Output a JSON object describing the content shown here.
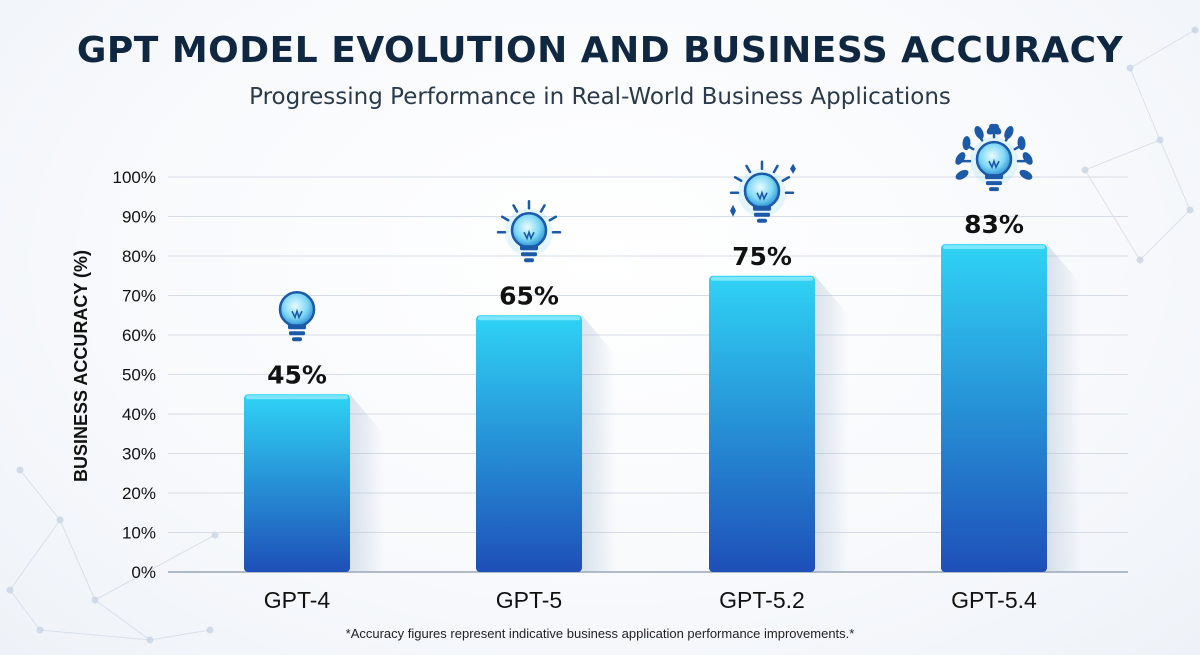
{
  "title": "GPT MODEL EVOLUTION AND BUSINESS ACCURACY",
  "subtitle": "Progressing Performance in Real-World Business Applications",
  "footnote": "*Accuracy figures represent indicative business application performance improvements.*",
  "colors": {
    "bar_top": "#2fd3f5",
    "bar_bottom": "#1e4fb8",
    "title": "#0f2740",
    "grid": "#d7dde6",
    "icon": "#1c5aa8"
  },
  "chart_data": {
    "type": "bar",
    "title": "GPT MODEL EVOLUTION AND BUSINESS ACCURACY",
    "subtitle": "Progressing Performance in Real-World Business Applications",
    "xlabel": "",
    "ylabel": "BUSINESS ACCURACY (%)",
    "ylim": [
      0,
      100
    ],
    "yticks": [
      0,
      10,
      20,
      30,
      40,
      50,
      60,
      70,
      80,
      90,
      100
    ],
    "ytick_labels": [
      "0%",
      "10%",
      "20%",
      "30%",
      "40%",
      "50%",
      "60%",
      "70%",
      "80%",
      "90%",
      "100%"
    ],
    "categories": [
      "GPT-4",
      "GPT-5",
      "GPT-5.2",
      "GPT-5.4"
    ],
    "values": [
      45,
      65,
      75,
      83
    ],
    "data_labels": [
      "45%",
      "65%",
      "75%",
      "83%"
    ],
    "icons": [
      "lightbulb-icon",
      "glowing-lightbulb-icon",
      "sparkle-lightbulb-icon",
      "laurel-lightbulb-icon"
    ],
    "grid": true,
    "legend": "none"
  }
}
